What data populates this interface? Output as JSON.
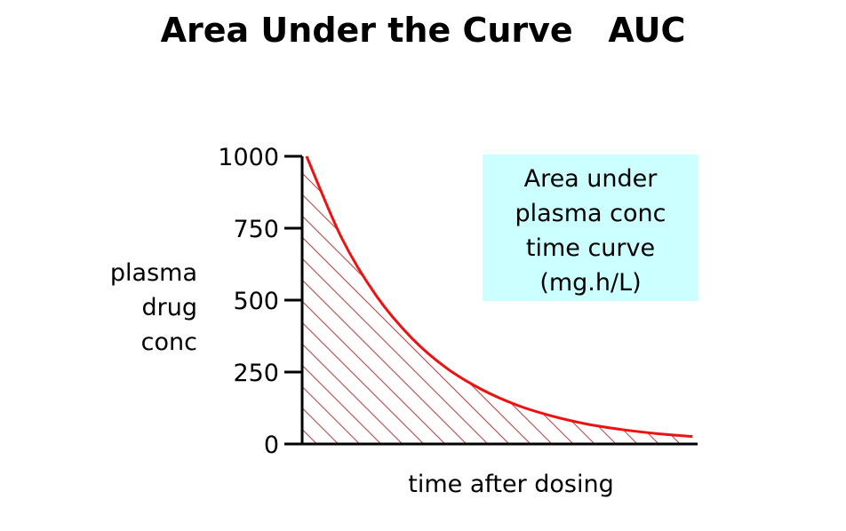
{
  "chart_data": {
    "type": "area",
    "title": "Area Under the Curve   AUC",
    "xlabel": "time after dosing",
    "ylabel_lines": [
      "plasma",
      "drug",
      "conc"
    ],
    "ylim": [
      0,
      1000
    ],
    "yticks": [
      0,
      250,
      500,
      750,
      1000
    ],
    "ytick_labels": [
      "0",
      "250",
      "500",
      "750",
      "1000"
    ],
    "x_ticks_shown": false,
    "grid": false,
    "series": [
      {
        "x": [
          0,
          1,
          2,
          3,
          4,
          5,
          6,
          7,
          8,
          9,
          10,
          11
        ],
        "values": [
          1000,
          716,
          513,
          368,
          263,
          189,
          135,
          97,
          69,
          50,
          36,
          26
        ],
        "color": "#ee1111",
        "fill_pattern": "diagonal-hatch",
        "hatch_color": "#b84a4a"
      }
    ],
    "annotation": {
      "lines": [
        "Area under",
        "plasma conc",
        "time curve",
        "(mg.h/L)"
      ],
      "background": "#ccffff"
    }
  }
}
